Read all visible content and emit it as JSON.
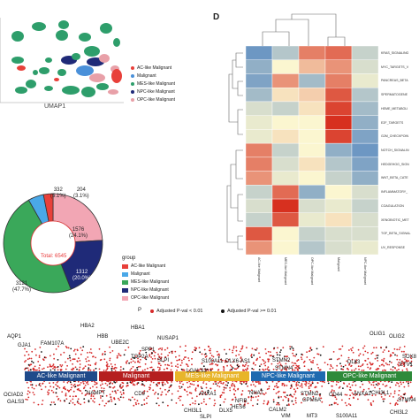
{
  "umap": {
    "xlabel": "UMAP1",
    "legend": [
      {
        "label": "AC-like Malignant",
        "color": "#e8403a"
      },
      {
        "label": "Malignant",
        "color": "#4a90d9"
      },
      {
        "label": "MES-like Malignant",
        "color": "#2e9e6b"
      },
      {
        "label": "NPC-like Malignant",
        "color": "#1f2a78"
      },
      {
        "label": "OPC-like Malignant",
        "color": "#e8a0a8"
      }
    ]
  },
  "donut": {
    "center_label": "Total: 6545",
    "legend_title": "group",
    "outside_labels": [
      {
        "count": "332",
        "pct": "(5.1%)"
      },
      {
        "count": "204",
        "pct": "(3.1%)"
      }
    ],
    "inside_labels": [
      {
        "count": "1576",
        "pct": "(24.1%)"
      },
      {
        "count": "1312",
        "pct": "(20.0%)"
      },
      {
        "count": "3121",
        "pct": "(47.7%)"
      }
    ],
    "legend": [
      {
        "label": "AC-like Malignant",
        "color": "#e8403a"
      },
      {
        "label": "Malignant",
        "color": "#4aa8e8"
      },
      {
        "label": "MES-like Malignant",
        "color": "#3aa85a"
      },
      {
        "label": "NPC-like Malignant",
        "color": "#1f2a78"
      },
      {
        "label": "OPC-like Malignant",
        "color": "#f2a6b4"
      }
    ]
  },
  "chart_data": [
    {
      "type": "pie",
      "title": "",
      "center_label": "Total: 6545",
      "categories": [
        "AC-like Malignant",
        "Malignant",
        "MES-like Malignant",
        "NPC-like Malignant",
        "OPC-like Malignant"
      ],
      "values": [
        204,
        332,
        3121,
        1312,
        1576
      ],
      "percents": [
        3.1,
        5.1,
        47.7,
        20.0,
        24.1
      ],
      "colors": [
        "#e8403a",
        "#4aa8e8",
        "#3aa85a",
        "#1f2a78",
        "#f2a6b4"
      ],
      "legend_title": "group",
      "legend_position": "right"
    },
    {
      "type": "heatmap",
      "rows": [
        "KRAS_SIGNALING",
        "MYC_TARGETS_V",
        "PANCREAS_BETA",
        "SPERMATOGENE",
        "HEME_METABOLI",
        "E2F_TARGETS",
        "G2M_CHECKPOIN",
        "NOTCH_SIGNALIN",
        "HEDGEHOG_SIGN",
        "WNT_BETA_CATE",
        "INFLAMMATORY_",
        "COAGULATION",
        "XENOBIOTIC_MET",
        "TGF_BETA_SIGNAL",
        "UV_RESPONSE"
      ],
      "columns": [
        "AC-like Malignant",
        "MES-like Malignant",
        "OPC-like Malignant",
        "Malignant",
        "NPC-like Malignant"
      ],
      "values": [
        [
          -0.8,
          -0.4,
          0.6,
          0.7,
          -0.3
        ],
        [
          -0.6,
          0.0,
          0.3,
          0.5,
          -0.2
        ],
        [
          -0.7,
          0.5,
          -0.5,
          0.6,
          -0.1
        ],
        [
          -0.5,
          0.1,
          0.2,
          0.8,
          -0.4
        ],
        [
          -0.2,
          -0.3,
          0.1,
          0.9,
          -0.5
        ],
        [
          -0.1,
          0.0,
          0.0,
          1.0,
          -0.6
        ],
        [
          -0.1,
          0.1,
          0.0,
          0.9,
          -0.7
        ],
        [
          0.6,
          -0.3,
          0.0,
          -0.6,
          -0.8
        ],
        [
          0.6,
          -0.2,
          0.1,
          -0.4,
          -0.7
        ],
        [
          0.5,
          -0.1,
          0.0,
          -0.3,
          -0.6
        ],
        [
          -0.3,
          0.7,
          -0.6,
          0.0,
          -0.2
        ],
        [
          -0.2,
          1.0,
          -0.2,
          -0.1,
          -0.3
        ],
        [
          -0.3,
          0.8,
          -0.1,
          0.1,
          -0.2
        ],
        [
          0.8,
          0.0,
          -0.3,
          -0.2,
          -0.2
        ],
        [
          0.5,
          0.0,
          -0.4,
          -0.2,
          -0.1
        ]
      ],
      "color_low": "#4a7fc0",
      "color_mid": "#fbf6d0",
      "color_high": "#d7301f"
    }
  ],
  "heatmap": {
    "panel_letter": "D",
    "row_labels": [
      "KRAS_SIGNALING",
      "MYC_TARGETS_V",
      "PANCREAS_BETA",
      "SPERMATOGENE",
      "HEME_METABOLI",
      "E2F_TARGETS",
      "G2M_CHECKPOIN",
      "NOTCH_SIGNALIN",
      "HEDGEHOG_SIGN",
      "WNT_BETA_CATE",
      "INFLAMMATORY_",
      "COAGULATION",
      "XENOBIOTIC_MET",
      "TGF_BETA_SIGNAL",
      "UV_RESPONSE"
    ],
    "col_labels": [
      "AC-like Malignant",
      "MES-like Malignant",
      "OPC-like Malignant",
      "Malignant",
      "NPC-like Malignant"
    ]
  },
  "strip": {
    "legend_title": "P",
    "legend": [
      {
        "label": "Adjusted P-val < 0.01",
        "color": "#d62a2a"
      },
      {
        "label": "Adjusted P-val >= 0.01",
        "color": "#111111"
      }
    ],
    "bands": [
      {
        "label": "AC-like Malignant",
        "color": "#1f4a8a"
      },
      {
        "label": "Malignant",
        "color": "#b51f1f"
      },
      {
        "label": "MES-like Malignant",
        "color": "#e8b52a"
      },
      {
        "label": "NPC-like Malignant",
        "color": "#1f6ab0"
      },
      {
        "label": "OPC-like Malignant",
        "color": "#2e8a3a"
      }
    ],
    "genes_top": [
      "HBA2",
      "HBA1",
      "AQP1",
      "FAM107A",
      "HBB",
      "NUSAP1",
      "UBE2C",
      "SPP1",
      "GJA1",
      "TOP2A",
      "SLPI",
      "S100A11",
      "DLX6-AS1",
      "STMN2",
      "OLIG1",
      "OLIG2",
      "SOX8",
      "ETV1",
      "LGALS3",
      "STMN4",
      "DLL3"
    ],
    "genes_bottom": [
      "OCIAD2",
      "GALS3",
      "NAMPT",
      "CD9",
      "ANXA1",
      "NNAT",
      "STMN2",
      "GPM6A",
      "CD44",
      "ANXA2",
      "CHI3L1",
      "STMN4",
      "NFIB",
      "HES6",
      "CALM2",
      "CHI3L1",
      "SLPI",
      "DLX5",
      "VIM",
      "MT3",
      "S100A11",
      "CHI3L2"
    ]
  }
}
